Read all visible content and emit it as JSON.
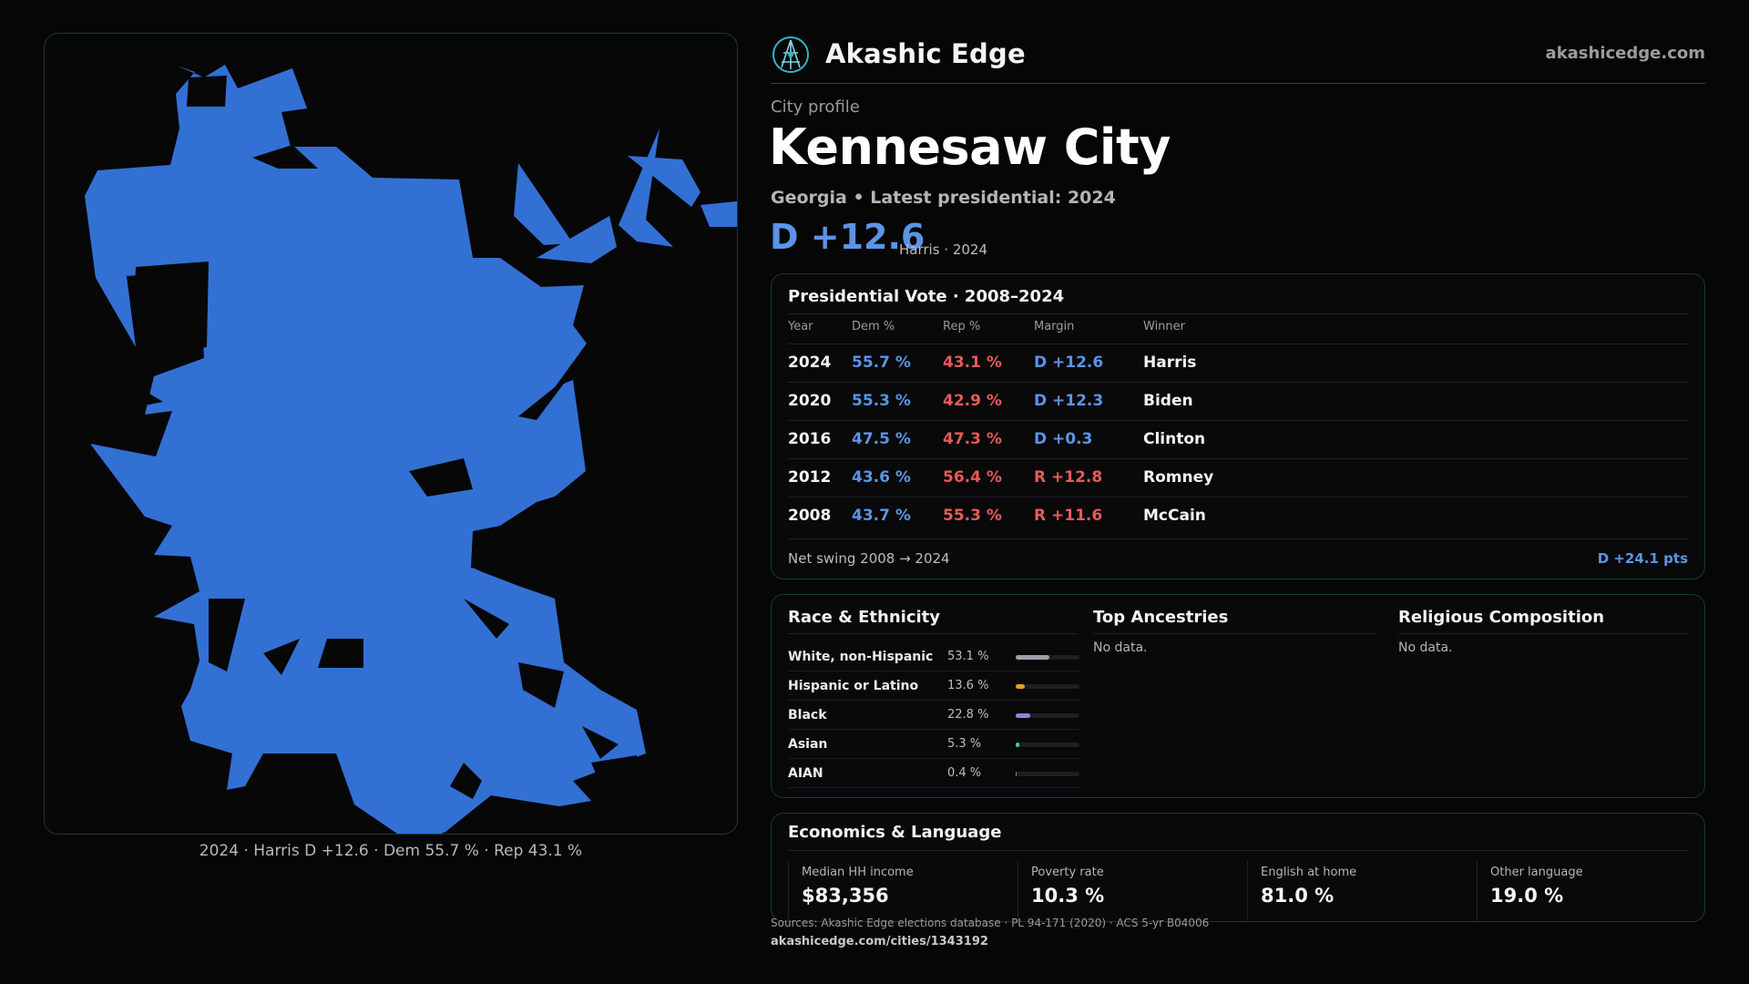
{
  "brand": {
    "name": "Akashic Edge",
    "domain": "akashicedge.com"
  },
  "header": {
    "eyebrow": "City profile",
    "title": "Kennesaw City",
    "subtitle": "Georgia • Latest presidential: 2024",
    "margin": "D +12.6",
    "margin_note": "Harris · 2024"
  },
  "map": {
    "fill_color": "#3370d4",
    "caption": "2024 · Harris D +12.6 · Dem 55.7 % · Rep 43.1 %"
  },
  "vote_table": {
    "title": "Presidential Vote · 2008–2024",
    "columns": [
      "Year",
      "Dem %",
      "Rep %",
      "Margin",
      "Winner"
    ],
    "rows": [
      {
        "year": "2024",
        "dem": "55.7 %",
        "rep": "43.1 %",
        "margin": "D +12.6",
        "winner": "Harris"
      },
      {
        "year": "2020",
        "dem": "55.3 %",
        "rep": "42.9 %",
        "margin": "D +12.3",
        "winner": "Biden"
      },
      {
        "year": "2016",
        "dem": "47.5 %",
        "rep": "47.3 %",
        "margin": "D +0.3",
        "winner": "Clinton"
      },
      {
        "year": "2012",
        "dem": "43.6 %",
        "rep": "56.4 %",
        "margin": "R +12.8",
        "winner": "Romney"
      },
      {
        "year": "2008",
        "dem": "43.7 %",
        "rep": "55.3 %",
        "margin": "R +11.6",
        "winner": "McCain"
      }
    ],
    "swing_label": "Net swing 2008 → 2024",
    "swing_value": "D +24.1 pts"
  },
  "race": {
    "title": "Race & Ethnicity",
    "rows": [
      {
        "label": "White, non-Hispanic",
        "pct": "53.1 %",
        "value": 53.1,
        "color": "#9aa0a8"
      },
      {
        "label": "Hispanic or Latino",
        "pct": "13.6 %",
        "value": 13.6,
        "color": "#e0a030"
      },
      {
        "label": "Black",
        "pct": "22.8 %",
        "value": 22.8,
        "color": "#9a7ee0"
      },
      {
        "label": "Asian",
        "pct": "5.3 %",
        "value": 5.3,
        "color": "#34c8a0"
      },
      {
        "label": "AIAN",
        "pct": "0.4 %",
        "value": 0.4,
        "color": "#d06060"
      }
    ]
  },
  "ancestries": {
    "title": "Top Ancestries",
    "empty": "No data."
  },
  "religion": {
    "title": "Religious Composition",
    "empty": "No data."
  },
  "economics": {
    "title": "Economics & Language",
    "stats": [
      {
        "label": "Median HH income",
        "value": "$83,356"
      },
      {
        "label": "Poverty rate",
        "value": "10.3 %"
      },
      {
        "label": "English at home",
        "value": "81.0 %"
      },
      {
        "label": "Other language",
        "value": "19.0 %"
      }
    ]
  },
  "footer": {
    "sources": "Sources: Akashic Edge elections database · PL 94-171 (2020) · ACS 5-yr B04006",
    "url": "akashicedge.com/cities/1343192"
  }
}
